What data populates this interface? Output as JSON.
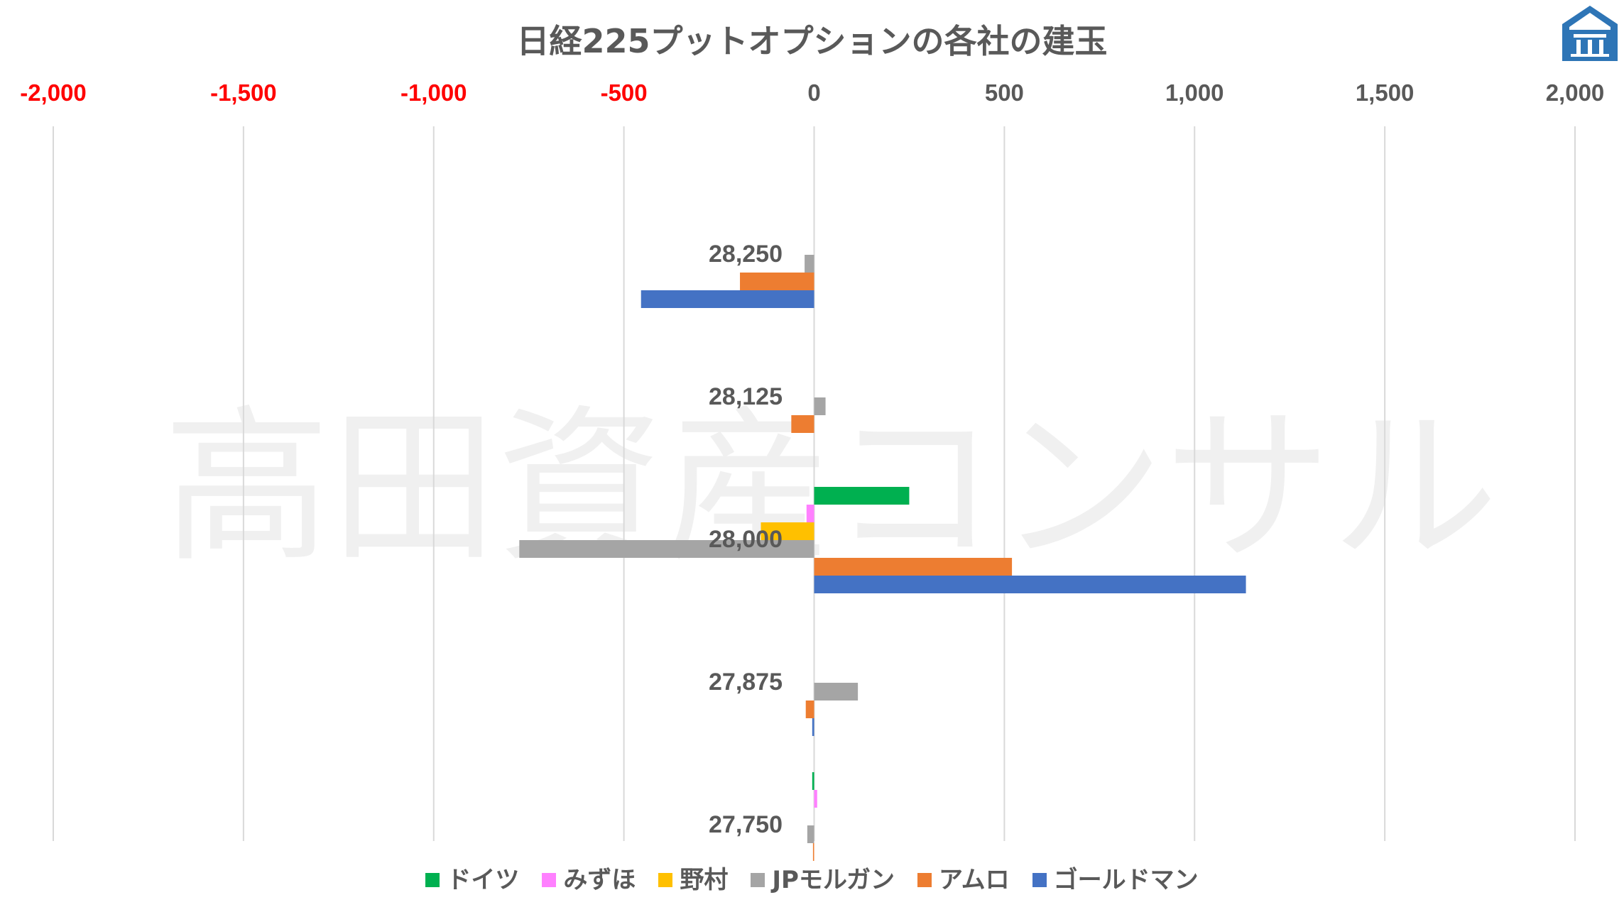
{
  "chart_data": {
    "type": "bar",
    "orientation": "horizontal",
    "title": "日経225プットオプションの各社の建玉",
    "watermark": "高田資産コンサル",
    "categories": [
      "28,250",
      "28,125",
      "28,000",
      "27,875",
      "27,750"
    ],
    "xlim": [
      -2000,
      2000
    ],
    "x_ticks": [
      "-2,000",
      "-1,500",
      "-1,000",
      "-500",
      "0",
      "500",
      "1,000",
      "1,500",
      "2,000"
    ],
    "x_tick_values": [
      -2000,
      -1500,
      -1000,
      -500,
      0,
      500,
      1000,
      1500,
      2000
    ],
    "negative_tick_color": "#ff0000",
    "tick_color": "#595959",
    "grid": "vertical",
    "legend_position": "bottom",
    "series": [
      {
        "name": "ドイツ",
        "color": "#00b050",
        "values": [
          0,
          0,
          250,
          0,
          -5
        ]
      },
      {
        "name": "みずほ",
        "color": "#ff80ff",
        "values": [
          0,
          0,
          -20,
          0,
          8
        ]
      },
      {
        "name": "野村",
        "color": "#ffc000",
        "values": [
          0,
          0,
          -140,
          0,
          0
        ]
      },
      {
        "name": "JPモルガン",
        "color": "#a5a5a5",
        "values": [
          -25,
          30,
          -775,
          115,
          -18
        ]
      },
      {
        "name": "アムロ",
        "color": "#ed7d31",
        "values": [
          -195,
          -60,
          520,
          -22,
          -3
        ]
      },
      {
        "name": "ゴールドマン",
        "color": "#4472c4",
        "values": [
          -455,
          0,
          1135,
          -5,
          0
        ]
      }
    ]
  }
}
